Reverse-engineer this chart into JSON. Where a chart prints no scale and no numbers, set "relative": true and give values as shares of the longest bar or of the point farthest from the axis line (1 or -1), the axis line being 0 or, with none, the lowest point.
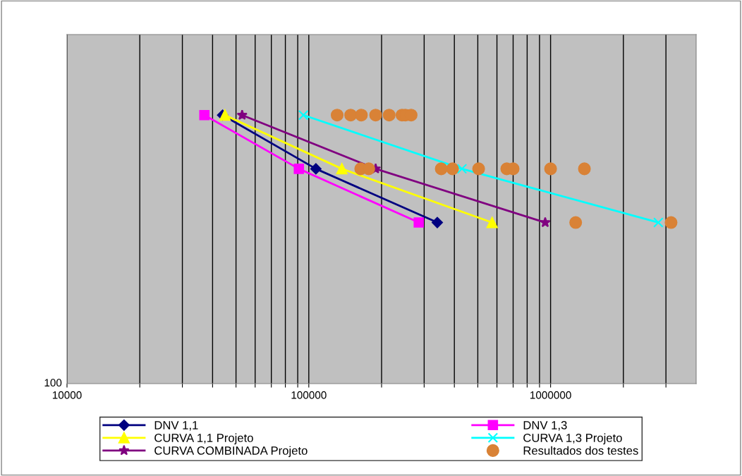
{
  "chart_data": {
    "type": "line",
    "log": "x",
    "relative": true,
    "grid": "x",
    "legend": "bottom",
    "annotations": [
      "100"
    ],
    "xlim": [
      10000,
      4000000
    ],
    "xticks": [
      10000,
      {
        "value": 20000,
        "label": null
      },
      {
        "value": 30000,
        "label": null
      },
      {
        "value": 40000,
        "label": null
      },
      {
        "value": 50000,
        "label": null
      },
      {
        "value": 60000,
        "label": null
      },
      {
        "value": 70000,
        "label": null
      },
      {
        "value": 80000,
        "label": null
      },
      {
        "value": 90000,
        "label": null
      },
      100000,
      {
        "value": 200000,
        "label": null
      },
      {
        "value": 300000,
        "label": null
      },
      {
        "value": 400000,
        "label": null
      },
      {
        "value": 500000,
        "label": null
      },
      {
        "value": 600000,
        "label": null
      },
      {
        "value": 700000,
        "label": null
      },
      {
        "value": 800000,
        "label": null
      },
      {
        "value": 900000,
        "label": null
      },
      1000000,
      {
        "value": 2000000,
        "label": null
      },
      {
        "value": 3000000,
        "label": null
      }
    ],
    "series": [
      {
        "name": "DNV 1,1",
        "color": "#000080",
        "marker": "diamond",
        "x": [
          44000,
          107000,
          340000
        ],
        "values": [
          1,
          0.8,
          0.6
        ]
      },
      {
        "name": "DNV 1,3",
        "color": "#ff00ff",
        "marker": "square",
        "x": [
          37000,
          91000,
          285000
        ],
        "values": [
          1,
          0.8,
          0.6
        ]
      },
      {
        "name": "CURVA 1,1 Projeto",
        "color": "#ffff00",
        "marker": "triangle",
        "x": [
          45000,
          137000,
          573000
        ],
        "values": [
          1,
          0.8,
          0.6
        ]
      },
      {
        "name": "CURVA 1,3 Projeto",
        "color": "#00ffff",
        "marker": "cross",
        "x": [
          95000,
          430000,
          2790000
        ],
        "values": [
          1,
          0.8,
          0.6
        ]
      },
      {
        "name": "CURVA COMBINADA Projeto",
        "color": "#800080",
        "marker": "star",
        "x": [
          53000,
          189000,
          950000
        ],
        "values": [
          1,
          0.8,
          0.6
        ]
      },
      {
        "name": "Resultados dos testes",
        "type": "scatter",
        "color": "#d98236",
        "marker": "circle",
        "x": [
          131000,
          149000,
          165000,
          189000,
          215000,
          243000,
          251000,
          265000,
          164000,
          177000,
          353000,
          393000,
          504000,
          659000,
          700000,
          1000000,
          1380000,
          1270000,
          3150000
        ],
        "values": [
          1,
          1,
          1,
          1,
          1,
          1,
          1,
          1,
          0.8,
          0.8,
          0.8,
          0.8,
          0.8,
          0.8,
          0.8,
          0.8,
          0.8,
          0.6,
          0.6
        ]
      }
    ]
  }
}
